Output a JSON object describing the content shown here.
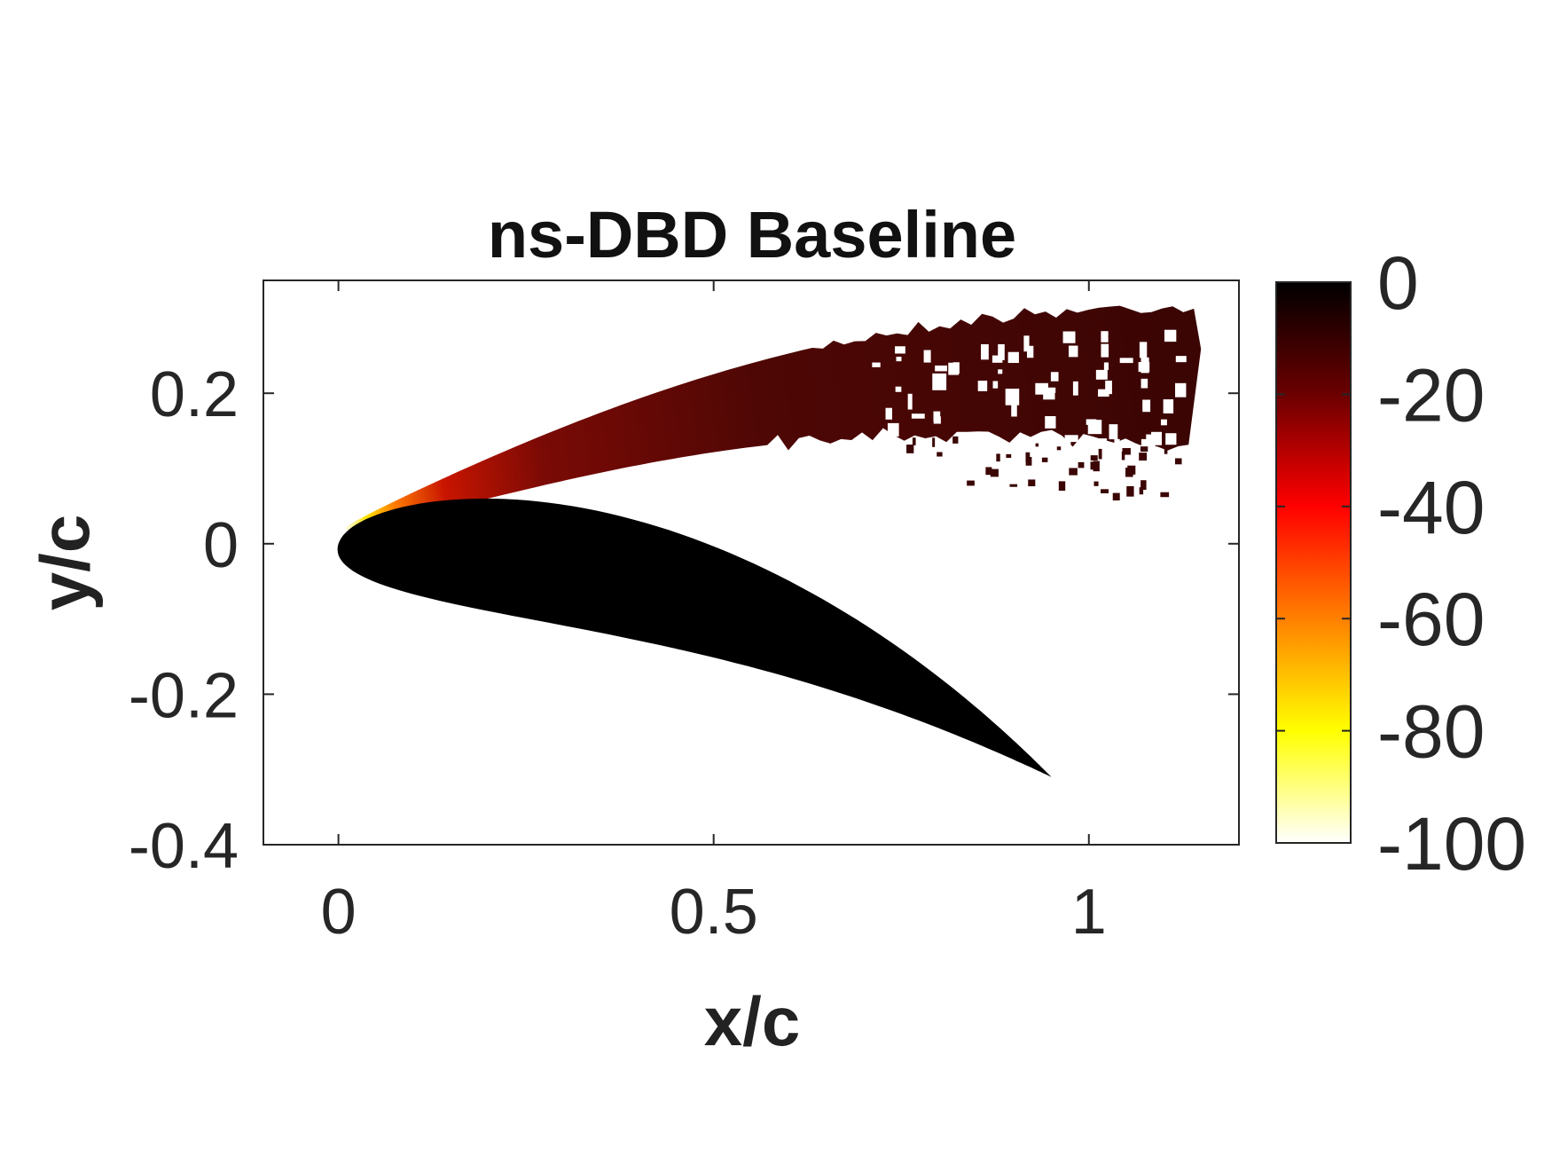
{
  "chart_data": {
    "type": "heatmap",
    "title": "ns-DBD Baseline",
    "xlabel": "x/c",
    "ylabel": "y/c",
    "xlim": [
      -0.1,
      1.2
    ],
    "ylim": [
      -0.4,
      0.35
    ],
    "xticks": [
      0,
      0.5,
      1
    ],
    "xtick_labels": [
      "0",
      "0.5",
      "1"
    ],
    "yticks": [
      0.2,
      0,
      -0.2,
      -0.4
    ],
    "ytick_labels": [
      "0.2",
      "0",
      "-0.2",
      "-0.4"
    ],
    "colorbar": {
      "range": [
        -100,
        0
      ],
      "ticks": [
        0,
        -20,
        -40,
        -60,
        -80,
        -100
      ],
      "tick_labels": [
        "0",
        "-20",
        "-40",
        "-60",
        "-80",
        "-100"
      ],
      "colormap": "hot",
      "colors": [
        "#000000",
        "#6b0000",
        "#ff0000",
        "#ff8000",
        "#ffff00",
        "#ffffff"
      ]
    },
    "airfoil": {
      "color": "#000000",
      "leading_edge": [
        0.0,
        0.0
      ],
      "trailing_edge": [
        0.95,
        -0.31
      ]
    },
    "shear_layer": {
      "start": [
        0.01,
        0.02
      ],
      "end": [
        1.14,
        0.2
      ],
      "peak_value": -100,
      "typical_value": -12
    }
  }
}
